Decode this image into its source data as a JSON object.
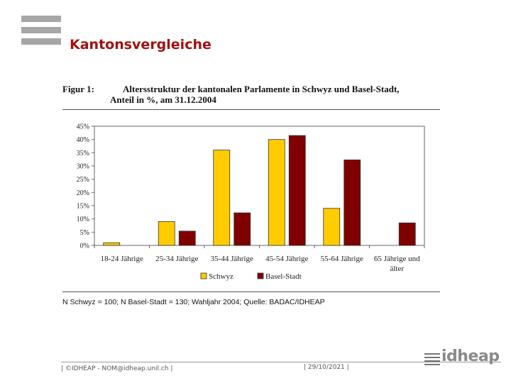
{
  "slide": {
    "title": "Kantonsvergleiche"
  },
  "figure": {
    "label": "Figur 1:",
    "title_line1": "Altersstruktur der kantonalen Parlamente in Schwyz und Basel-Stadt,",
    "title_line2": "Anteil in %, am 31.12.2004",
    "source": "N Schwyz = 100; N Basel-Stadt = 130; Wahljahr 2004; Quelle: BADAC/IDHEAP"
  },
  "footer": {
    "left": "| ©IDHEAP - NOM@idheap.unil.ch |",
    "date": "| 29/10/2021 |",
    "logo_text": "idheap"
  },
  "colors": {
    "title": "#a31010",
    "schwyz": "#ffcc00",
    "basel": "#800000"
  },
  "chart_data": {
    "type": "bar",
    "categories": [
      "18-24 Jährige",
      "25-34 Jährige",
      "35-44 Jährige",
      "45-54 Jährige",
      "55-64 Jährige",
      "65 Jährige und älter"
    ],
    "series": [
      {
        "name": "Schwyz",
        "values": [
          1,
          9,
          36,
          40,
          14,
          0
        ],
        "color": "#ffcc00"
      },
      {
        "name": "Basel-Stadt",
        "values": [
          0,
          5.4,
          12.3,
          41.5,
          32.3,
          8.5
        ],
        "color": "#800000"
      }
    ],
    "y_ticks": [
      "0%",
      "5%",
      "10%",
      "15%",
      "20%",
      "25%",
      "30%",
      "35%",
      "40%",
      "45%"
    ],
    "ylim": [
      0,
      45
    ],
    "grid": false,
    "legend": "bottom"
  }
}
